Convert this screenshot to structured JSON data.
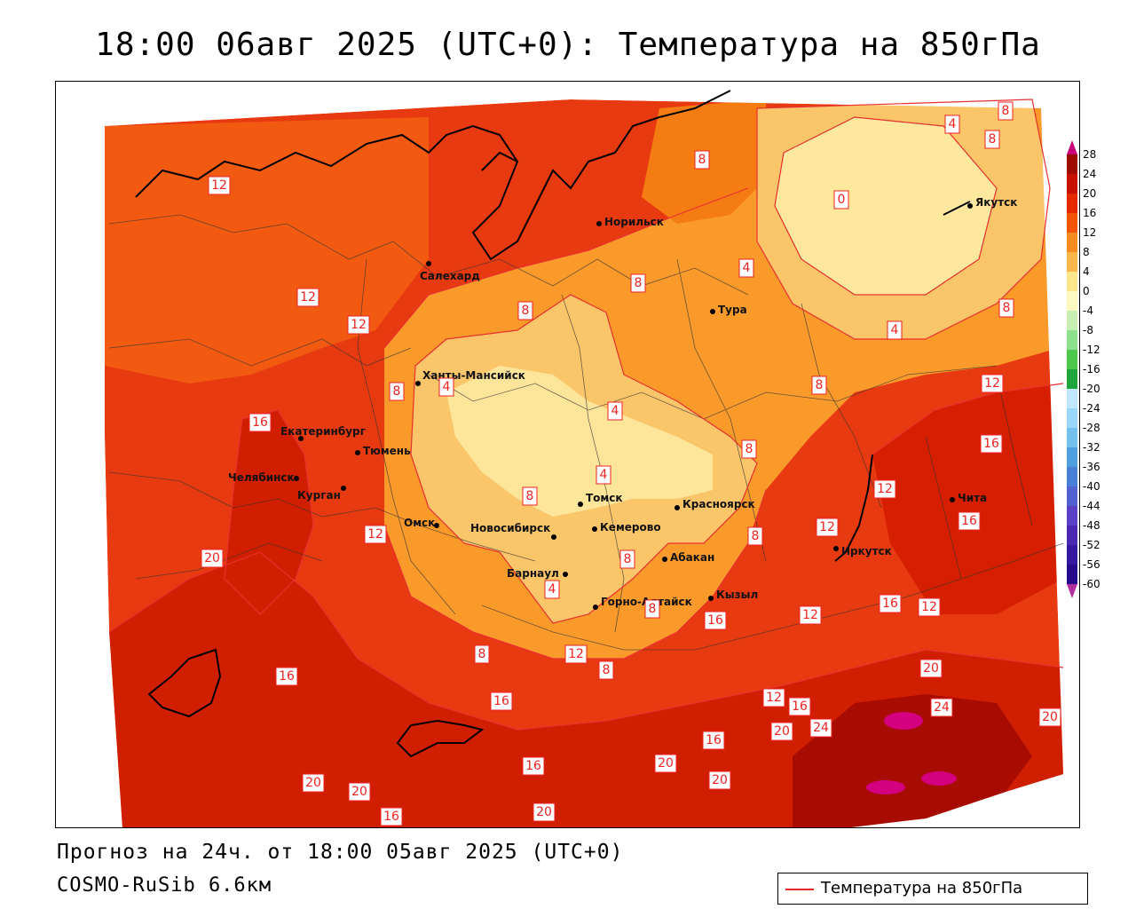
{
  "title": "18:00 06авг 2025 (UTC+0): Температура на 850гПа",
  "forecast_info": "Прогноз на 24ч. от 18:00 05авг 2025 (UTC+0)",
  "model_info": "COSMO-RuSib 6.6км",
  "legend": {
    "label": "Температура на 850гПа",
    "line_color": "#e22222"
  },
  "colorbar": {
    "ticks": [
      "28",
      "24",
      "20",
      "16",
      "12",
      "8",
      "4",
      "0",
      "-4",
      "-8",
      "-12",
      "-16",
      "-20",
      "-24",
      "-28",
      "-32",
      "-36",
      "-40",
      "-44",
      "-48",
      "-52",
      "-56",
      "-60"
    ],
    "colors": [
      "#c8007a",
      "#9c0a00",
      "#c81000",
      "#e42800",
      "#f25400",
      "#f78b1f",
      "#fbb64a",
      "#fde58a",
      "#fff8c0",
      "#c9f0b4",
      "#8fe08a",
      "#4cc84c",
      "#1fa63a",
      "#bfe7ff",
      "#9ad7f8",
      "#73c2ee",
      "#4f9fe0",
      "#4a7fd8",
      "#5161d0",
      "#5a40c4",
      "#4b28b3",
      "#3518a0",
      "#260a8c",
      "#b030a0"
    ]
  },
  "cities": [
    {
      "name": "Норильск"
    },
    {
      "name": "Салехард"
    },
    {
      "name": "Тура"
    },
    {
      "name": "Якутск"
    },
    {
      "name": "Ханты-Мансийск"
    },
    {
      "name": "Екатеринбург"
    },
    {
      "name": "Тюмень"
    },
    {
      "name": "Челябинск"
    },
    {
      "name": "Курган"
    },
    {
      "name": "Омск"
    },
    {
      "name": "Новосибирск"
    },
    {
      "name": "Томск"
    },
    {
      "name": "Кемерово"
    },
    {
      "name": "Красноярск"
    },
    {
      "name": "Барнаул"
    },
    {
      "name": "Абакан"
    },
    {
      "name": "Горно-Алтайск"
    },
    {
      "name": "Кызыл"
    },
    {
      "name": "Иркутск"
    },
    {
      "name": "Чита"
    }
  ],
  "isotherm_labels": [
    "12",
    "12",
    "12",
    "8",
    "8",
    "8",
    "8",
    "4",
    "4",
    "8",
    "0",
    "4",
    "8",
    "8",
    "4",
    "4",
    "4",
    "8",
    "8",
    "16",
    "16",
    "12",
    "12",
    "8",
    "16",
    "20",
    "12",
    "8",
    "4",
    "8",
    "12",
    "12",
    "16",
    "16",
    "12",
    "16",
    "20",
    "16",
    "16",
    "12",
    "20",
    "24",
    "20",
    "16",
    "20",
    "20",
    "20",
    "20",
    "16",
    "20",
    "24",
    "8",
    "8",
    "8",
    "12",
    "16"
  ]
}
